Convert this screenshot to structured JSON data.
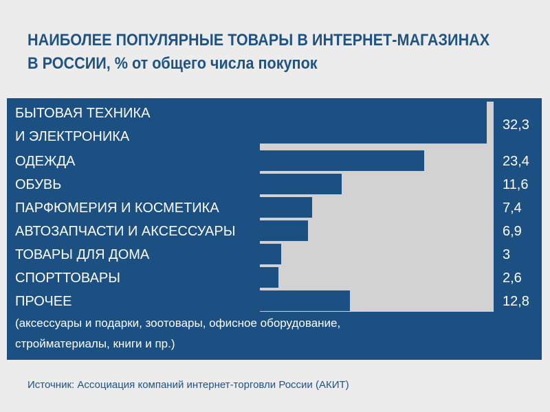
{
  "colors": {
    "accent": "#1c5083",
    "plot_bg": "#d2d2d2",
    "page_bg": "#ececec"
  },
  "chart_data": {
    "type": "bar",
    "orientation": "horizontal",
    "title_lines": [
      "НАИБОЛЕЕ ПОПУЛЯРНЫЕ ТОВАРЫ В ИНТЕРНЕТ-МАГАЗИНАХ",
      "В РОССИИ, % от общего числа покупок"
    ],
    "categories": [
      [
        "БЫТОВАЯ ТЕХНИКА",
        "И ЭЛЕКТРОНИКА"
      ],
      [
        "ОДЕЖДА"
      ],
      [
        "ОБУВЬ"
      ],
      [
        "ПАРФЮМЕРИЯ И КОСМЕТИКА"
      ],
      [
        "АВТОЗАПЧАСТИ И АКСЕССУАРЫ"
      ],
      [
        "ТОВАРЫ ДЛЯ ДОМА"
      ],
      [
        "СПОРТТОВАРЫ"
      ],
      [
        "ПРОЧЕЕ"
      ]
    ],
    "values": [
      32.3,
      23.4,
      11.6,
      7.4,
      6.9,
      3,
      2.6,
      12.8
    ],
    "value_labels": [
      "32,3",
      "23,4",
      "11,6",
      "7,4",
      "6,9",
      "3",
      "2,6",
      "12,8"
    ],
    "note_lines": [
      "(аксессуары и подарки, зоотовары, офисное оборудование,",
      "стройматериалы, книги и пр.)"
    ],
    "xlim": [
      0,
      33.5
    ],
    "source": "Источник: Ассоциация компаний интернет-торговли России (АКИТ)"
  }
}
